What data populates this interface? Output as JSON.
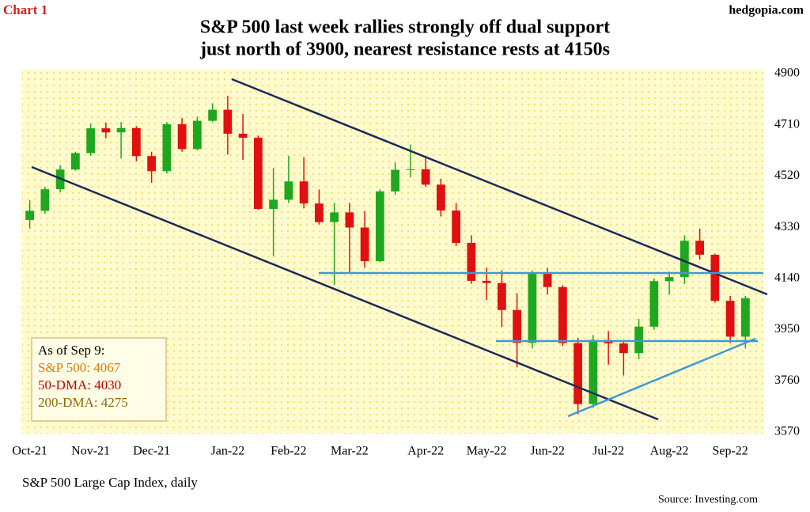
{
  "chart_data": {
    "type": "candlestick",
    "tag": "Chart 1",
    "site": "hedgopia.com",
    "title": "S&P 500 last week rallies strongly off dual support",
    "subtitle": "just north of 3900, nearest resistance rests at 4150s",
    "x_label": "S&P 500 Large Cap Index, daily",
    "source": "Source: Investing.com",
    "legend_box": {
      "heading": "As of Sep 9:",
      "lines": [
        {
          "text": "S&P 500: 4067",
          "color": "#e07b00"
        },
        {
          "text": "50-DMA: 4030",
          "color": "#c00000"
        },
        {
          "text": "200-DMA: 4275",
          "color": "#8b6b00"
        }
      ]
    },
    "categories": [
      "Oct-21",
      null,
      null,
      null,
      "Nov-21",
      null,
      null,
      null,
      "Dec-21",
      null,
      null,
      null,
      null,
      "Jan-22",
      null,
      null,
      null,
      "Feb-22",
      null,
      null,
      null,
      "Mar-22",
      null,
      null,
      null,
      null,
      "Apr-22",
      null,
      null,
      null,
      "May-22",
      null,
      null,
      null,
      "Jun-22",
      null,
      null,
      null,
      "Jul-22",
      null,
      null,
      null,
      "Aug-22",
      null,
      null,
      null,
      "Sep-22",
      null
    ],
    "open": [
      4357,
      4391,
      4471,
      4544,
      4605,
      4697,
      4682,
      4698,
      4594,
      4538,
      4712,
      4620,
      4725,
      4766,
      4677,
      4662,
      4398,
      4432,
      4500,
      4418,
      4349,
      4385,
      4329,
      4204,
      4463,
      4543,
      4545,
      4488,
      4392,
      4272,
      4131,
      4123,
      4023,
      3901,
      4158,
      4108,
      3900,
      3674,
      3912,
      3899,
      3863,
      3961,
      4130,
      4145,
      4280,
      4228,
      4057,
      3924
    ],
    "high": [
      4430,
      4480,
      4560,
      4610,
      4715,
      4718,
      4720,
      4705,
      4610,
      4720,
      4735,
      4740,
      4790,
      4818,
      4750,
      4670,
      4550,
      4595,
      4590,
      4470,
      4420,
      4420,
      4390,
      4470,
      4570,
      4637,
      4595,
      4510,
      4420,
      4300,
      4180,
      4170,
      4085,
      4170,
      4180,
      4115,
      3920,
      3930,
      3945,
      3910,
      3990,
      4140,
      4165,
      4300,
      4325,
      4232,
      4075,
      4075
    ],
    "low": [
      4325,
      4380,
      4460,
      4540,
      4595,
      4660,
      4585,
      4575,
      4495,
      4530,
      4610,
      4615,
      4720,
      4600,
      4580,
      4395,
      4222,
      4420,
      4400,
      4340,
      4115,
      4160,
      4180,
      4200,
      4450,
      4515,
      4480,
      4370,
      4260,
      4120,
      4060,
      3960,
      3810,
      3880,
      4080,
      3890,
      3637,
      3660,
      3820,
      3780,
      3840,
      3950,
      4080,
      4120,
      4210,
      4050,
      3900,
      3880
    ],
    "close": [
      4391,
      4471,
      4544,
      4605,
      4697,
      4682,
      4698,
      4594,
      4538,
      4712,
      4620,
      4725,
      4766,
      4677,
      4662,
      4398,
      4432,
      4500,
      4418,
      4349,
      4385,
      4329,
      4204,
      4463,
      4543,
      4545,
      4488,
      4392,
      4272,
      4131,
      4123,
      4023,
      3901,
      4158,
      4108,
      3900,
      3674,
      3912,
      3899,
      3863,
      3961,
      4130,
      4145,
      4280,
      4228,
      4057,
      3924,
      4067
    ],
    "up_color": "#1fa81f",
    "down_color": "#e01010",
    "ylim": [
      3570,
      4900
    ],
    "yticks": [
      3570,
      3760,
      3950,
      4140,
      4330,
      4520,
      4710,
      4900
    ]
  }
}
